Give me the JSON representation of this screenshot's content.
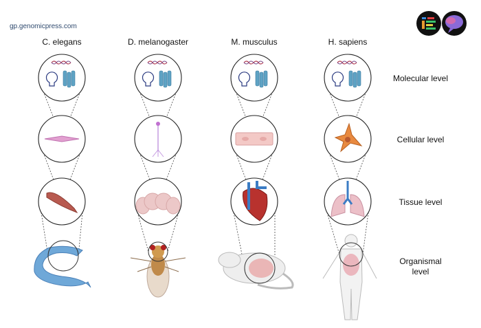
{
  "header": {
    "url": "gp.genomicpress.com",
    "logo": "genomic-press-logos"
  },
  "species": [
    "C. elegans",
    "D. melanogaster",
    "M. musculus",
    "H. sapiens"
  ],
  "levels": {
    "molecular": "Molecular level",
    "cellular": "Cellular level",
    "tissue": "Tissue level",
    "organismal_1": "Organismal",
    "organismal_2": "level"
  },
  "illustrations": {
    "molecular": [
      "dna-icon",
      "lightbulb-rna-icon",
      "protein-icon"
    ],
    "cellular": [
      "muscle-cell-icon",
      "neuron-icon",
      "myocyte-icon",
      "fibroblast-icon"
    ],
    "tissue": [
      "muscle-tissue-icon",
      "fly-brain-icon",
      "heart-icon",
      "lungs-icon"
    ],
    "organism": [
      "worm-icon",
      "fly-icon",
      "mouse-icon",
      "human-icon"
    ]
  },
  "colors": {
    "dna": "#b5455a",
    "protein": "#5fa3c4",
    "worm": "#6fa8d8",
    "heart": "#b8322e",
    "vessel": "#3b7cc4"
  }
}
